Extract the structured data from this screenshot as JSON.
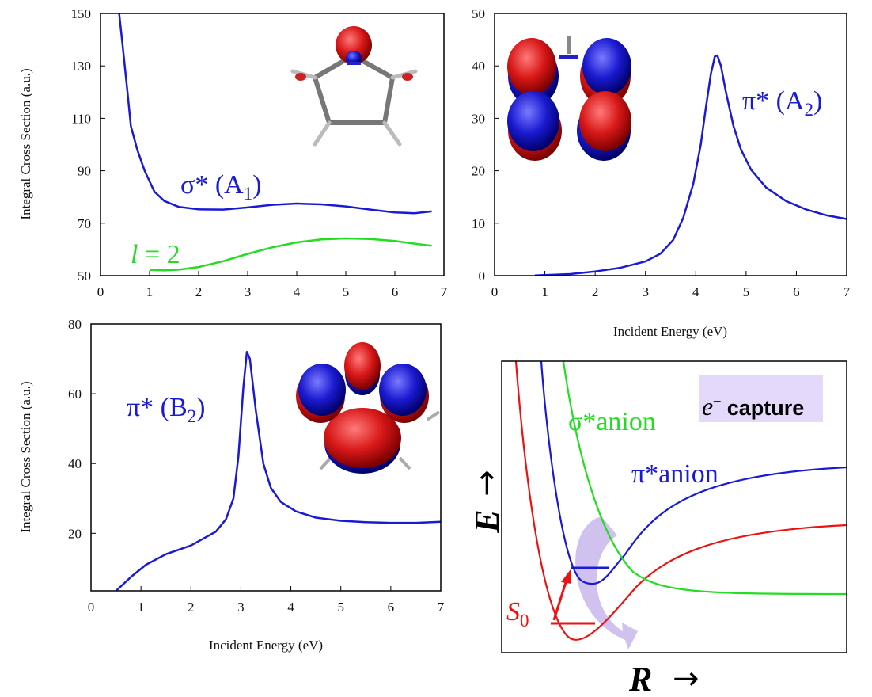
{
  "colors": {
    "blue": "#1a1ad6",
    "green": "#22dd22",
    "red": "#ee1111",
    "purple_arrow": "#c9b6ec",
    "capture_bg": "#e4d8fb"
  },
  "chart_data": [
    {
      "type": "line",
      "panel": "top-left",
      "xlabel": "",
      "ylabel": "Integral Cross Section (a.u.)",
      "xlim": [
        0,
        7
      ],
      "ylim": [
        50,
        150
      ],
      "xticks": [
        "0",
        "1",
        "2",
        "3",
        "4",
        "5",
        "6",
        "7"
      ],
      "yticks": [
        "50",
        "70",
        "90",
        "110",
        "130",
        "150"
      ],
      "series": [
        {
          "name": "σ* (A1)",
          "color": "blue",
          "points": [
            [
              0.38,
              150
            ],
            [
              0.45,
              138
            ],
            [
              0.55,
              120
            ],
            [
              0.62,
              107
            ],
            [
              0.75,
              98
            ],
            [
              0.9,
              90
            ],
            [
              1.1,
              82
            ],
            [
              1.3,
              78.5
            ],
            [
              1.6,
              76.2
            ],
            [
              2,
              75.3
            ],
            [
              2.5,
              75.2
            ],
            [
              3,
              76.0
            ],
            [
              3.5,
              77.0
            ],
            [
              4,
              77.5
            ],
            [
              4.5,
              77.2
            ],
            [
              5,
              76.4
            ],
            [
              5.5,
              75.2
            ],
            [
              6,
              74.1
            ],
            [
              6.4,
              73.8
            ],
            [
              6.75,
              74.5
            ]
          ]
        },
        {
          "name": "l = 2",
          "color": "green",
          "points": [
            [
              1.0,
              52.2
            ],
            [
              1.3,
              52.0
            ],
            [
              1.6,
              52.3
            ],
            [
              2,
              53.3
            ],
            [
              2.5,
              55.5
            ],
            [
              3,
              58.3
            ],
            [
              3.5,
              60.8
            ],
            [
              4,
              62.7
            ],
            [
              4.5,
              63.8
            ],
            [
              5,
              64.2
            ],
            [
              5.5,
              64.0
            ],
            [
              6,
              63.2
            ],
            [
              6.4,
              62.2
            ],
            [
              6.75,
              61.4
            ]
          ]
        }
      ],
      "label_main": "σ* (A",
      "label_sub": "1",
      "label_close": ")",
      "label_green_l": "l",
      "label_green_rest": " = 2"
    },
    {
      "type": "line",
      "panel": "top-right",
      "xlabel": "Incident Energy (eV)",
      "ylabel": "",
      "xlim": [
        0,
        7
      ],
      "ylim": [
        0,
        50
      ],
      "xticks": [
        "0",
        "1",
        "2",
        "3",
        "4",
        "5",
        "6",
        "7"
      ],
      "yticks": [
        "0",
        "10",
        "20",
        "30",
        "40",
        "50"
      ],
      "series": [
        {
          "name": "π* (A2)",
          "color": "blue",
          "points": [
            [
              0.8,
              0.05
            ],
            [
              1.5,
              0.3
            ],
            [
              2,
              0.8
            ],
            [
              2.5,
              1.5
            ],
            [
              3,
              2.7
            ],
            [
              3.3,
              4.2
            ],
            [
              3.55,
              6.8
            ],
            [
              3.75,
              11
            ],
            [
              3.95,
              17.5
            ],
            [
              4.1,
              25
            ],
            [
              4.2,
              32
            ],
            [
              4.3,
              38.5
            ],
            [
              4.38,
              41.8
            ],
            [
              4.43,
              42
            ],
            [
              4.5,
              40
            ],
            [
              4.6,
              35
            ],
            [
              4.75,
              28.5
            ],
            [
              4.9,
              24
            ],
            [
              5.1,
              20.2
            ],
            [
              5.4,
              16.8
            ],
            [
              5.8,
              14.2
            ],
            [
              6.2,
              12.6
            ],
            [
              6.6,
              11.5
            ],
            [
              7,
              10.8
            ]
          ]
        }
      ],
      "label_main": "π* (A",
      "label_sub": "2",
      "label_close": ")"
    },
    {
      "type": "line",
      "panel": "bottom-left",
      "xlabel": "Incident Energy (eV)",
      "ylabel": "Integral Cross Section (a.u.)",
      "xlim": [
        0,
        7
      ],
      "ylim": [
        3.5,
        80
      ],
      "xticks": [
        "0",
        "1",
        "2",
        "3",
        "4",
        "5",
        "6",
        "7"
      ],
      "yticks": [
        "20",
        "40",
        "60",
        "80"
      ],
      "series": [
        {
          "name": "π* (B2)",
          "color": "blue",
          "points": [
            [
              0.5,
              3.5
            ],
            [
              0.8,
              7.5
            ],
            [
              1.1,
              11
            ],
            [
              1.5,
              14
            ],
            [
              2,
              16.5
            ],
            [
              2.5,
              20.5
            ],
            [
              2.7,
              24
            ],
            [
              2.85,
              30
            ],
            [
              2.95,
              42
            ],
            [
              3.05,
              62
            ],
            [
              3.12,
              72
            ],
            [
              3.18,
              70
            ],
            [
              3.3,
              55
            ],
            [
              3.45,
              40
            ],
            [
              3.6,
              33
            ],
            [
              3.8,
              29
            ],
            [
              4.1,
              26.3
            ],
            [
              4.5,
              24.5
            ],
            [
              5,
              23.6
            ],
            [
              5.5,
              23.2
            ],
            [
              6,
              23.0
            ],
            [
              6.5,
              23.0
            ],
            [
              7,
              23.3
            ]
          ]
        }
      ],
      "label_main": "π* (B",
      "label_sub": "2",
      "label_close": ")"
    },
    {
      "type": "line",
      "panel": "bottom-right",
      "xlabel": "R →",
      "ylabel": "E →",
      "series": [
        {
          "name": "σ*anion",
          "color": "green"
        },
        {
          "name": "π*anion",
          "color": "blue"
        },
        {
          "name": "S0",
          "color": "red"
        }
      ],
      "label_sigma": "σ*anion",
      "label_pi": "π*anion",
      "label_s": "S",
      "label_s_sub": "0",
      "capture_e": "e",
      "capture_sup": "–",
      "capture_word": " capture",
      "axis_E": "E",
      "axis_R": "R",
      "axis_arrow": "→"
    }
  ]
}
